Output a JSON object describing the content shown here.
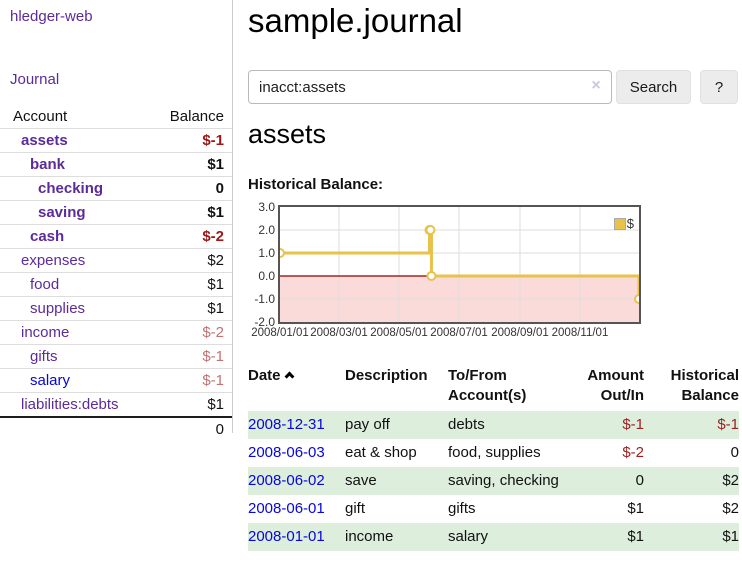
{
  "app": {
    "brand": "hledger-web",
    "nav": {
      "journal": "Journal"
    }
  },
  "sidebar": {
    "account_header": "Account",
    "balance_header": "Balance",
    "rows": [
      {
        "name": "assets",
        "balance": "$-1"
      },
      {
        "name": "bank",
        "balance": "$1"
      },
      {
        "name": "checking",
        "balance": "0"
      },
      {
        "name": "saving",
        "balance": "$1"
      },
      {
        "name": "cash",
        "balance": "$-2"
      },
      {
        "name": "expenses",
        "balance": "$2"
      },
      {
        "name": "food",
        "balance": "$1"
      },
      {
        "name": "supplies",
        "balance": "$1"
      },
      {
        "name": "income",
        "balance": "$-2"
      },
      {
        "name": "gifts",
        "balance": "$-1"
      },
      {
        "name": "salary",
        "balance": "$-1"
      },
      {
        "name": "liabilities:debts",
        "balance": "$1"
      }
    ],
    "total": "0"
  },
  "main": {
    "title": "sample.journal",
    "search": {
      "value": "inacct:assets",
      "clear_icon": "×",
      "search_button": "Search",
      "help_button": "?"
    },
    "account_title": "assets",
    "chart_heading": "Historical Balance:"
  },
  "chart_data": {
    "type": "line",
    "step": true,
    "title": "Historical Balance",
    "series": [
      {
        "name": "$",
        "color": "#e8c24a",
        "points": [
          [
            0,
            1
          ],
          [
            152,
            2
          ],
          [
            153,
            2
          ],
          [
            154,
            0
          ],
          [
            365,
            -1
          ]
        ],
        "point_dates": [
          "2008-01-01",
          "2008-06-01",
          "2008-06-02",
          "2008-06-03",
          "2008-12-31"
        ]
      }
    ],
    "x_ticks": [
      {
        "pos": 0,
        "label": "2008/01/01"
      },
      {
        "pos": 60,
        "label": "2008/03/01"
      },
      {
        "pos": 121,
        "label": "2008/05/01"
      },
      {
        "pos": 182,
        "label": "2008/07/01"
      },
      {
        "pos": 244,
        "label": "2008/09/01"
      },
      {
        "pos": 305,
        "label": "2008/11/01"
      }
    ],
    "y_ticks": [
      {
        "v": 3,
        "label": "3.0"
      },
      {
        "v": 2,
        "label": "2.0"
      },
      {
        "v": 1,
        "label": "1.0"
      },
      {
        "v": 0,
        "label": "0.0"
      },
      {
        "v": -1,
        "label": "-1.0"
      },
      {
        "v": -2,
        "label": "-2.0"
      }
    ],
    "xlim": [
      0,
      365
    ],
    "ylim": [
      -2,
      3
    ],
    "grid": true,
    "legend": {
      "label": "$",
      "position": "top-right",
      "swatch_color": "#e8c24a"
    },
    "negative_region_color": "#fbdada",
    "zero_line_color": "#8b0000"
  },
  "register": {
    "columns": {
      "date": "Date",
      "description": "Description",
      "accounts_l1": "To/From",
      "accounts_l2": "Account(s)",
      "amount_l1": "Amount",
      "amount_l2": "Out/In",
      "balance_l1": "Historical",
      "balance_l2": "Balance"
    },
    "rows": [
      {
        "date": "2008-12-31",
        "description": "pay off",
        "accounts": "debts",
        "amount": "$-1",
        "balance": "$-1"
      },
      {
        "date": "2008-06-03",
        "description": "eat & shop",
        "accounts": "food, supplies",
        "amount": "$-2",
        "balance": "0"
      },
      {
        "date": "2008-06-02",
        "description": "save",
        "accounts": "saving, checking",
        "amount": "0",
        "balance": "$2"
      },
      {
        "date": "2008-06-01",
        "description": "gift",
        "accounts": "gifts",
        "amount": "$1",
        "balance": "$2"
      },
      {
        "date": "2008-01-01",
        "description": "income",
        "accounts": "salary",
        "amount": "$1",
        "balance": "$1"
      }
    ]
  }
}
